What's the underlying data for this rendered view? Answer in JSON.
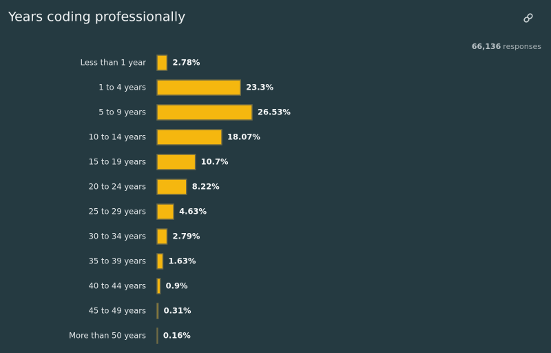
{
  "chart_data": {
    "type": "bar",
    "orientation": "horizontal",
    "title": "Years coding professionally",
    "responses_count": {
      "value": 66136,
      "label": "66,136"
    },
    "responses_text": "responses",
    "categories": [
      "Less than 1 year",
      "1 to 4 years",
      "5 to 9 years",
      "10 to 14 years",
      "15 to 19 years",
      "20 to 24 years",
      "25 to 29 years",
      "30 to 34 years",
      "35 to 39 years",
      "40 to 44 years",
      "45 to 49 years",
      "More than 50 years"
    ],
    "values": [
      2.78,
      23.3,
      26.53,
      18.07,
      10.7,
      8.22,
      4.63,
      2.79,
      1.63,
      0.9,
      0.31,
      0.16
    ],
    "value_labels": [
      "2.78%",
      "23.3%",
      "26.53%",
      "18.07%",
      "10.7%",
      "8.22%",
      "4.63%",
      "2.79%",
      "1.63%",
      "0.9%",
      "0.31%",
      "0.16%"
    ],
    "color": "#f5b70f"
  }
}
